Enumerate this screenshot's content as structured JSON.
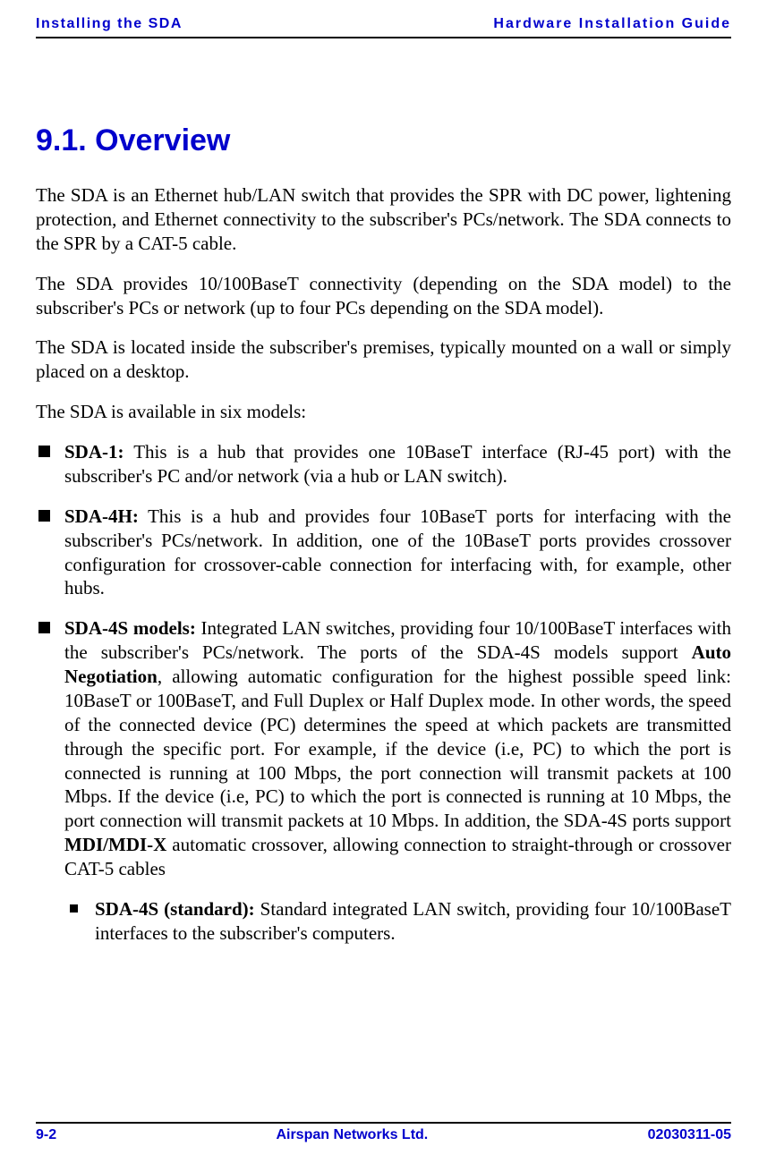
{
  "header": {
    "left": "Installing the SDA",
    "right": "Hardware Installation Guide"
  },
  "section": {
    "number": "9.1.",
    "title": "Overview"
  },
  "paragraphs": {
    "p1": "The SDA is an Ethernet hub/LAN switch that provides the SPR with DC power, lightening protection, and Ethernet connectivity to the subscriber's PCs/network. The SDA connects to the SPR by a CAT-5 cable.",
    "p2": "The SDA provides 10/100BaseT connectivity (depending on the SDA model) to the subscriber's PCs or network (up to four PCs depending on the SDA model).",
    "p3": "The SDA is located inside the subscriber's premises, typically mounted on a wall or simply placed on a desktop.",
    "p4": "The SDA is available in six models:"
  },
  "bullets": {
    "b1_label": "SDA-1:",
    "b1_text": " This is a hub that provides one 10BaseT interface (RJ-45 port) with the subscriber's PC and/or network (via a hub or LAN switch).",
    "b2_label": "SDA-4H:",
    "b2_text": " This is a hub and provides four 10BaseT ports for interfacing with the subscriber's PCs/network. In addition, one of the 10BaseT ports provides crossover configuration for crossover-cable connection for interfacing with, for example, other hubs.",
    "b3_label": "SDA-4S models:",
    "b3_t1": " Integrated LAN switches, providing four 10/100BaseT interfaces with the subscriber's PCs/network. The ports of the SDA-4S models support ",
    "b3_bold1": "Auto Negotiation",
    "b3_t2": ", allowing automatic configuration for the highest possible speed link: 10BaseT or 100BaseT, and Full Duplex or Half Duplex mode. In other words, the speed of the connected device (PC) determines the speed at which packets are transmitted through the specific port. For example, if the device (i.e, PC) to which the port is connected is running at 100 Mbps, the port connection will transmit packets at 100 Mbps. If the device (i.e, PC) to which the port is connected is running at 10 Mbps, the port connection will transmit packets at 10 Mbps. In addition, the SDA-4S  ports support ",
    "b3_bold2": "MDI/MDI-X",
    "b3_t3": " automatic crossover, allowing connection to straight-through or crossover CAT-5 cables",
    "sub1_label": "SDA-4S (standard):",
    "sub1_text": " Standard integrated LAN switch, providing four 10/100BaseT interfaces to the subscriber's computers."
  },
  "footer": {
    "left": "9-2",
    "center": "Airspan Networks Ltd.",
    "right": "02030311-05"
  },
  "colors": {
    "brand_blue": "#0000cc",
    "text": "#000000",
    "background": "#ffffff"
  }
}
